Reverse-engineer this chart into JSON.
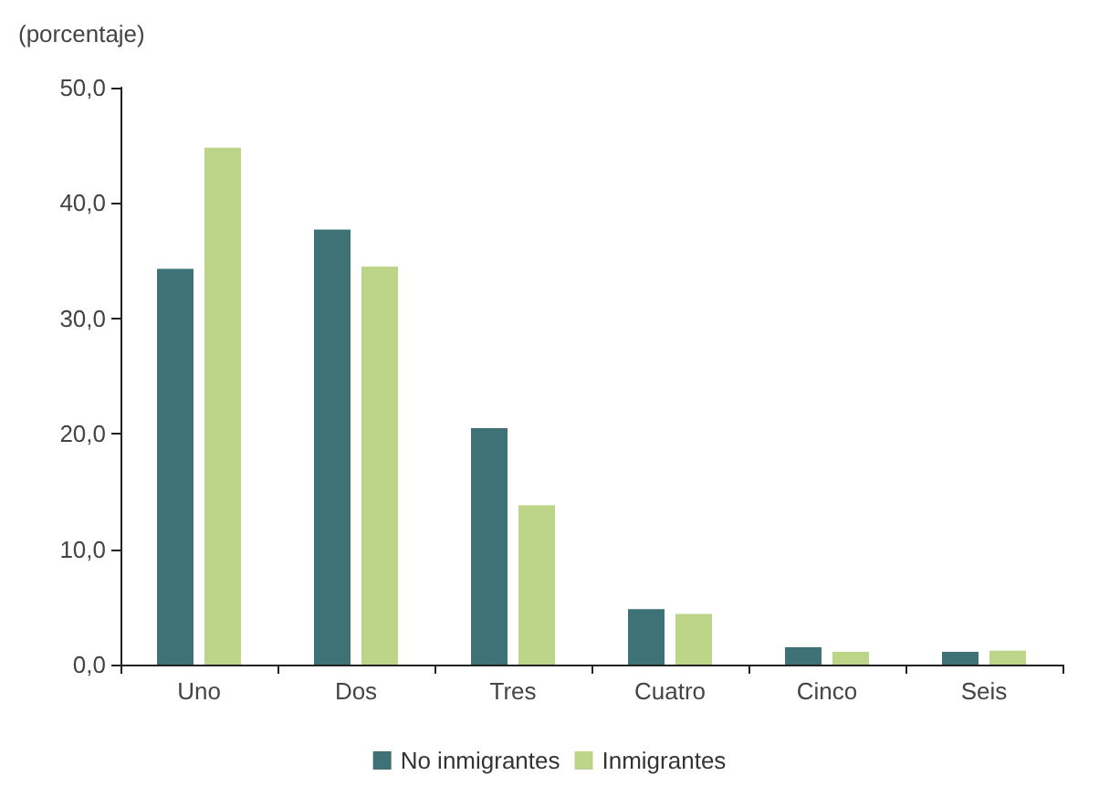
{
  "chart_data": {
    "type": "bar",
    "ylabel": "(porcentaje)",
    "categories": [
      "Uno",
      "Dos",
      "Tres",
      "Cuatro",
      "Cinco",
      "Seis"
    ],
    "series": [
      {
        "name": "No inmigrantes",
        "color": "#3e7276",
        "values": [
          34.3,
          37.7,
          20.5,
          4.8,
          1.5,
          1.1
        ]
      },
      {
        "name": "Inmigrantes",
        "color": "#bdd589",
        "values": [
          44.8,
          34.5,
          13.8,
          4.4,
          1.1,
          1.2
        ]
      }
    ],
    "ylim": [
      0,
      50
    ],
    "yticks": [
      {
        "value": 0,
        "label": "0,0"
      },
      {
        "value": 10,
        "label": "10,0"
      },
      {
        "value": 20,
        "label": "20,0"
      },
      {
        "value": 30,
        "label": "30,0"
      },
      {
        "value": 40,
        "label": "40,0"
      },
      {
        "value": 50,
        "label": "50,0"
      }
    ],
    "grid": false,
    "legend": "bottom"
  }
}
